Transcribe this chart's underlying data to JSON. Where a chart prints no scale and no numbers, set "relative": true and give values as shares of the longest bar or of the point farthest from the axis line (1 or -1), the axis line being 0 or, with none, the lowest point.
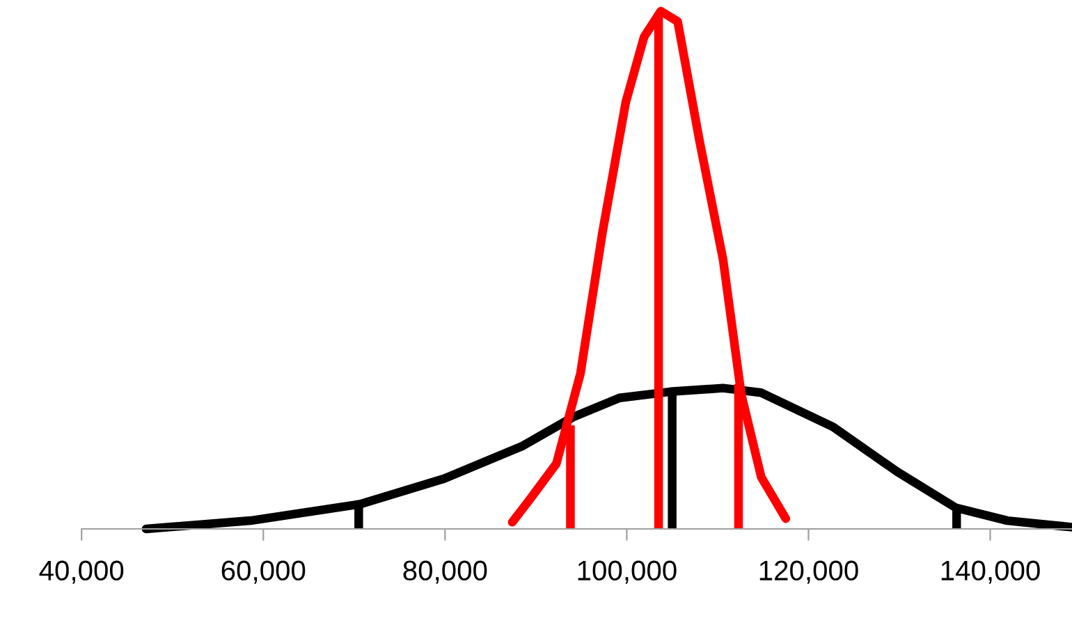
{
  "chart_data": {
    "type": "line",
    "relative": true,
    "legend": false,
    "grid": false,
    "marker": "none",
    "line_style": "solid",
    "xlim": [
      40000,
      149000
    ],
    "xticks": [
      {
        "value": 40000,
        "label": "40,000"
      },
      {
        "value": 60000,
        "label": "60,000"
      },
      {
        "value": 80000,
        "label": "80,000"
      },
      {
        "value": 100000,
        "label": "100,000"
      },
      {
        "value": 120000,
        "label": "120,000"
      },
      {
        "value": 140000,
        "label": "140,000"
      }
    ],
    "series": [
      {
        "color": "#000000",
        "x": [
          47100,
          58600,
          70700,
          79900,
          88500,
          94100,
          99200,
          104800,
          110600,
          114800,
          122700,
          129800,
          136200,
          141900,
          148900
        ],
        "values": [
          0.0,
          0.016,
          0.048,
          0.097,
          0.16,
          0.216,
          0.253,
          0.265,
          0.272,
          0.263,
          0.197,
          0.11,
          0.041,
          0.016,
          0.0035
        ]
      },
      {
        "color": "#ff0000",
        "x": [
          87400,
          89200,
          92250,
          94900,
          97300,
          99900,
          101900,
          103750,
          105600,
          108000,
          110600,
          112600,
          114800,
          117500
        ],
        "values": [
          0.013,
          0.054,
          0.126,
          0.3,
          0.57,
          0.825,
          0.95,
          1.0,
          0.98,
          0.75,
          0.52,
          0.26,
          0.1,
          0.02
        ]
      },
      {
        "color": "#ff0000",
        "x": [
          93800,
          93800
        ],
        "values": [
          0,
          0.2
        ]
      },
      {
        "color": "#ff0000",
        "x": [
          103500,
          103500
        ],
        "values": [
          0,
          0.99
        ]
      },
      {
        "color": "#ff0000",
        "x": [
          112300,
          112300
        ],
        "values": [
          0,
          0.28
        ]
      },
      {
        "color": "#000000",
        "x": [
          70500,
          70500
        ],
        "values": [
          0,
          0.045
        ]
      },
      {
        "color": "#000000",
        "x": [
          105000,
          105000
        ],
        "values": [
          0,
          0.26
        ]
      },
      {
        "color": "#000000",
        "x": [
          136300,
          136300
        ],
        "values": [
          0,
          0.04
        ]
      }
    ]
  }
}
